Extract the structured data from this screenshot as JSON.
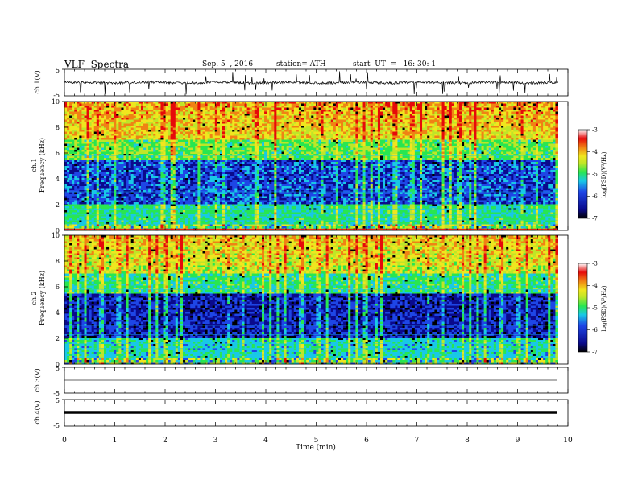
{
  "header": {
    "title": "VLF  Spectra",
    "date": "Sep. 5  , 2016",
    "station": "station= ATH",
    "start": "start  UT  =   16: 30: 1"
  },
  "colors": {
    "spectrogram_scale": [
      "#000000",
      "#0a0a8c",
      "#1e46e6",
      "#19c8e6",
      "#28e650",
      "#bee628",
      "#f0e61e",
      "#f08214",
      "#e60a0a",
      "#ffffff"
    ]
  },
  "chart_data": [
    {
      "type": "line",
      "panel": "ch1-waveform",
      "ylabel": "ch.1(V)",
      "ylim": [
        -5,
        5
      ],
      "y_ticks": [
        "5",
        "-5"
      ],
      "xlim": [
        0,
        10
      ],
      "trace_mean": 0,
      "trace_spread": [
        -0.8,
        0.8
      ],
      "grid": false
    },
    {
      "type": "heatmap",
      "panel": "ch1-spectrogram",
      "ylabel_channel": "ch.1",
      "ylabel": "Frequency  (kHz)",
      "ylim": [
        0,
        10
      ],
      "y_ticks": [
        "0",
        "2",
        "4",
        "6",
        "8",
        "10"
      ],
      "xlim": [
        0,
        9.8
      ],
      "colorbar": {
        "label": "log(PSD)(V²/Hz)",
        "range": [
          -7,
          -3
        ],
        "ticks": [
          "-3",
          "-4",
          "-5",
          "-6",
          "-7"
        ]
      }
    },
    {
      "type": "heatmap",
      "panel": "ch2-spectrogram",
      "ylabel_channel": "ch.2",
      "ylabel": "Frequency  (kHz)",
      "ylim": [
        0,
        10
      ],
      "y_ticks": [
        "0",
        "2",
        "4",
        "6",
        "8",
        "10"
      ],
      "xlim": [
        0,
        9.8
      ],
      "colorbar": {
        "label": "log(PSD)(V²/Hz)",
        "range": [
          -7,
          -3
        ],
        "ticks": [
          "-3",
          "-4",
          "-5",
          "-6",
          "-7"
        ]
      }
    },
    {
      "type": "line",
      "panel": "ch3-waveform",
      "ylabel": "ch.3(V)",
      "ylim": [
        -5,
        5
      ],
      "y_ticks": [
        "5",
        "-5"
      ],
      "xlim": [
        0,
        9.8
      ],
      "trace_mean": 0
    },
    {
      "type": "line",
      "panel": "ch4-waveform",
      "ylabel": "ch.4(V)",
      "ylim": [
        -5,
        5
      ],
      "y_ticks": [
        "5",
        "-5"
      ],
      "xlim": [
        0,
        9.8
      ],
      "trace_mean": 0
    },
    {
      "type": "axis",
      "panel": "time-axis",
      "xlabel": "Time  (min)",
      "x_ticks": [
        "0",
        "1",
        "2",
        "3",
        "4",
        "5",
        "6",
        "7",
        "8",
        "9",
        "10"
      ],
      "xlim": [
        0,
        10
      ]
    }
  ]
}
